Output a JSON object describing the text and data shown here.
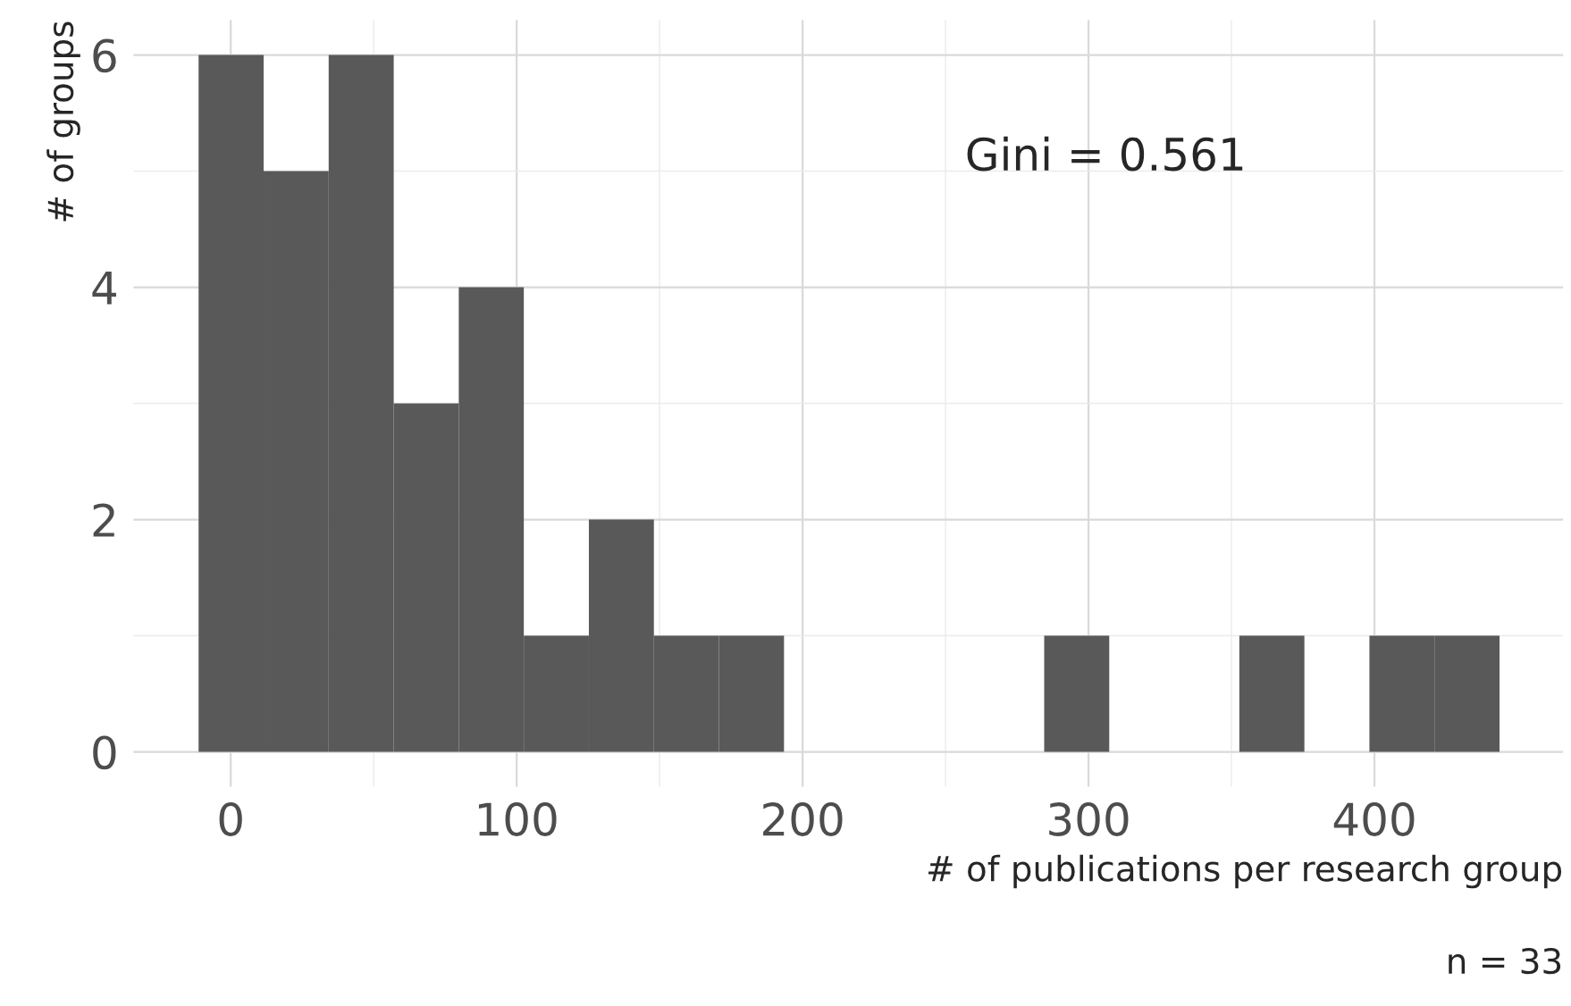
{
  "chart_data": {
    "type": "histogram",
    "bins": [
      -11.25,
      11.5,
      34.25,
      57,
      79.75,
      102.5,
      125.25,
      148,
      170.75,
      193.5,
      216.25,
      239,
      261.75,
      284.5,
      307.25,
      330,
      352.75,
      375.5,
      398.25,
      421,
      443.75
    ],
    "values": [
      6,
      5,
      6,
      3,
      4,
      1,
      2,
      1,
      1,
      0,
      0,
      0,
      0,
      1,
      0,
      0,
      1,
      0,
      1,
      1
    ],
    "color": "#595959",
    "xlabel": "# of publications per research group",
    "ylabel": "# of groups",
    "xlim": [
      -34,
      466
    ],
    "ylim": [
      -0.3,
      6.3
    ],
    "xticks": [
      0,
      100,
      200,
      300,
      400
    ],
    "yticks": [
      0,
      2,
      4,
      6
    ],
    "grid": true,
    "annotations": [
      "Gini = 0.561",
      "n = 33"
    ]
  }
}
